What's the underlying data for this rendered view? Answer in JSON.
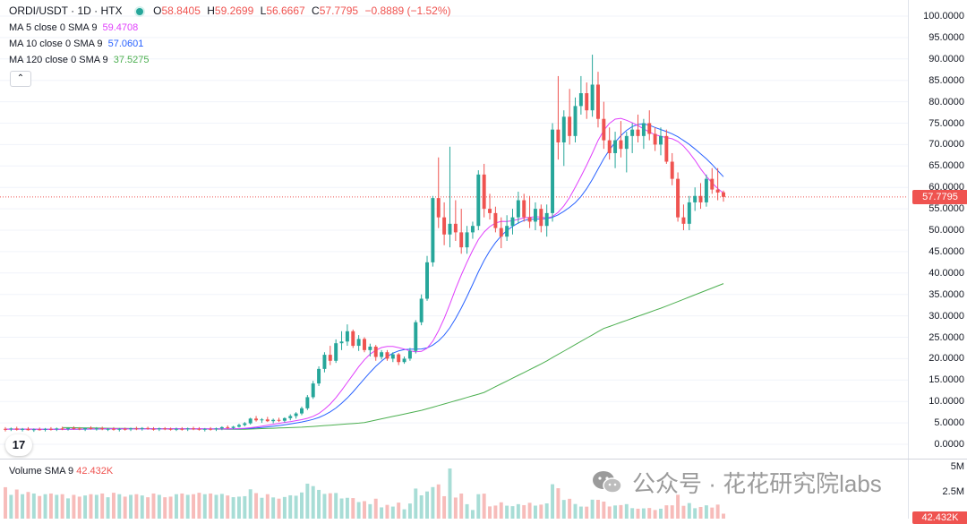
{
  "header": {
    "symbol": "ORDI/USDT · 1D · HTX",
    "ohlc": [
      {
        "k": "O",
        "v": "58.8405"
      },
      {
        "k": "H",
        "v": "59.2699"
      },
      {
        "k": "L",
        "v": "56.6667"
      },
      {
        "k": "C",
        "v": "57.7795"
      }
    ],
    "change": "−0.8889 (−1.52%)"
  },
  "indicators": [
    {
      "label": "MA 5 close 0 SMA 9",
      "value": "59.4708",
      "color": "#e040fb"
    },
    {
      "label": "MA 10 close 0 SMA 9",
      "value": "57.0601",
      "color": "#2962ff"
    },
    {
      "label": "MA 120 close 0 SMA 9",
      "value": "37.5275",
      "color": "#4caf50"
    }
  ],
  "collapse_icon": "chevron-up-icon",
  "collapse_glyph": "⌃",
  "logo_text": "17",
  "price_axis": {
    "labels": [
      "100.0000",
      "95.0000",
      "90.0000",
      "85.0000",
      "80.0000",
      "75.0000",
      "70.0000",
      "65.0000",
      "60.0000",
      "55.0000",
      "50.0000",
      "45.0000",
      "40.0000",
      "35.0000",
      "30.0000",
      "25.0000",
      "20.0000",
      "15.0000",
      "10.0000",
      "5.0000",
      "0.0000"
    ],
    "last_price": "57.7795",
    "last_price_color": "#ef5350"
  },
  "volume": {
    "legend_label": "Volume SMA 9",
    "legend_value": "42.432K",
    "axis_labels": [
      "5M",
      "2.5M"
    ],
    "last_tag": "42.432K"
  },
  "watermark": {
    "text": "公众号 · 花花研究院labs"
  },
  "colors": {
    "up": "#26a69a",
    "down": "#ef5350",
    "ma5": "#e040fb",
    "ma10": "#2962ff",
    "ma120": "#4caf50",
    "grid": "#f0f3fa"
  },
  "chart_data": {
    "type": "candlestick",
    "ylim": [
      0,
      100
    ],
    "candles": [
      [
        3.6,
        4.0,
        3.0,
        3.5
      ],
      [
        3.5,
        3.9,
        3.1,
        3.7
      ],
      [
        3.7,
        4.1,
        3.2,
        3.4
      ],
      [
        3.4,
        3.8,
        3.0,
        3.6
      ],
      [
        3.6,
        4.0,
        3.2,
        3.3
      ],
      [
        3.3,
        3.7,
        2.9,
        3.5
      ],
      [
        3.5,
        3.9,
        3.2,
        3.4
      ],
      [
        3.4,
        3.8,
        3.0,
        3.6
      ],
      [
        3.6,
        4.0,
        3.2,
        3.5
      ],
      [
        3.5,
        3.9,
        3.1,
        3.7
      ],
      [
        3.7,
        4.1,
        3.3,
        3.6
      ],
      [
        3.6,
        3.9,
        3.2,
        3.8
      ],
      [
        3.8,
        4.2,
        3.4,
        3.7
      ],
      [
        3.7,
        4.0,
        3.3,
        3.5
      ],
      [
        3.5,
        3.9,
        3.1,
        3.8
      ],
      [
        3.8,
        4.2,
        3.4,
        3.6
      ],
      [
        3.6,
        4.0,
        3.2,
        3.7
      ],
      [
        3.7,
        4.1,
        3.3,
        3.5
      ],
      [
        3.5,
        3.8,
        3.1,
        3.6
      ],
      [
        3.6,
        4.0,
        3.2,
        3.4
      ],
      [
        3.4,
        3.8,
        3.0,
        3.6
      ],
      [
        3.6,
        3.9,
        3.2,
        3.5
      ],
      [
        3.5,
        3.9,
        3.1,
        3.7
      ],
      [
        3.7,
        4.1,
        3.3,
        3.6
      ],
      [
        3.6,
        4.0,
        3.2,
        3.8
      ],
      [
        3.8,
        4.1,
        3.4,
        3.6
      ],
      [
        3.6,
        4.0,
        3.2,
        3.5
      ],
      [
        3.5,
        3.9,
        3.1,
        3.7
      ],
      [
        3.7,
        4.0,
        3.3,
        3.6
      ],
      [
        3.6,
        3.9,
        3.2,
        3.5
      ],
      [
        3.5,
        3.9,
        3.1,
        3.6
      ],
      [
        3.6,
        4.0,
        3.2,
        3.5
      ],
      [
        3.5,
        3.9,
        3.1,
        3.7
      ],
      [
        3.7,
        4.1,
        3.3,
        3.6
      ],
      [
        3.6,
        4.0,
        3.2,
        3.4
      ],
      [
        3.4,
        3.8,
        3.0,
        3.6
      ],
      [
        3.6,
        4.0,
        3.2,
        3.5
      ],
      [
        3.5,
        3.9,
        3.1,
        3.7
      ],
      [
        3.7,
        4.2,
        3.3,
        4.0
      ],
      [
        4.0,
        4.4,
        3.6,
        3.8
      ],
      [
        3.8,
        4.3,
        3.5,
        4.1
      ],
      [
        4.1,
        4.8,
        3.9,
        4.5
      ],
      [
        4.5,
        5.2,
        4.2,
        4.9
      ],
      [
        4.9,
        6.2,
        4.6,
        6.0
      ],
      [
        6.0,
        6.6,
        5.3,
        5.6
      ],
      [
        5.6,
        6.1,
        5.0,
        5.8
      ],
      [
        5.8,
        6.4,
        5.2,
        5.4
      ],
      [
        5.4,
        6.0,
        4.9,
        5.7
      ],
      [
        5.7,
        6.2,
        5.2,
        5.5
      ],
      [
        5.5,
        6.3,
        5.1,
        6.1
      ],
      [
        6.1,
        7.0,
        5.6,
        6.6
      ],
      [
        6.6,
        7.5,
        6.0,
        7.2
      ],
      [
        7.2,
        8.8,
        6.8,
        8.4
      ],
      [
        8.4,
        11.5,
        8.0,
        11.0
      ],
      [
        11.0,
        14.8,
        10.6,
        14.2
      ],
      [
        14.2,
        18.2,
        13.6,
        17.6
      ],
      [
        17.6,
        21.5,
        16.8,
        20.9
      ],
      [
        20.9,
        23.0,
        18.5,
        19.5
      ],
      [
        19.5,
        24.5,
        19.0,
        23.6
      ],
      [
        23.6,
        26.4,
        22.0,
        24.0
      ],
      [
        24.0,
        28.0,
        23.0,
        26.4
      ],
      [
        26.4,
        26.8,
        22.5,
        23.0
      ],
      [
        23.0,
        25.5,
        21.8,
        24.6
      ],
      [
        24.6,
        25.0,
        21.5,
        22.0
      ],
      [
        22.0,
        23.5,
        20.5,
        22.8
      ],
      [
        22.8,
        23.2,
        19.5,
        20.4
      ],
      [
        20.4,
        22.0,
        19.8,
        21.5
      ],
      [
        21.5,
        22.0,
        19.5,
        20.0
      ],
      [
        20.0,
        21.5,
        19.2,
        21.0
      ],
      [
        21.0,
        21.3,
        18.5,
        19.2
      ],
      [
        19.2,
        20.5,
        18.8,
        20.0
      ],
      [
        20.0,
        22.5,
        19.5,
        21.8
      ],
      [
        21.8,
        29.0,
        21.2,
        28.5
      ],
      [
        28.5,
        35.0,
        27.8,
        34.0
      ],
      [
        34.0,
        44.0,
        33.5,
        42.5
      ],
      [
        42.5,
        58.0,
        41.5,
        57.5
      ],
      [
        57.5,
        67.0,
        50.5,
        53.0
      ],
      [
        53.0,
        56.5,
        46.5,
        49.0
      ],
      [
        49.0,
        69.5,
        46.0,
        51.5
      ],
      [
        51.5,
        57.0,
        47.5,
        49.5
      ],
      [
        49.5,
        55.0,
        44.5,
        46.0
      ],
      [
        46.0,
        51.0,
        44.5,
        49.5
      ],
      [
        49.5,
        52.0,
        48.0,
        51.0
      ],
      [
        51.0,
        64.0,
        50.0,
        63.0
      ],
      [
        63.0,
        65.5,
        53.0,
        55.0
      ],
      [
        55.0,
        58.5,
        52.5,
        54.0
      ],
      [
        54.0,
        55.5,
        49.5,
        50.5
      ],
      [
        50.5,
        53.0,
        45.8,
        48.5
      ],
      [
        48.5,
        53.5,
        47.5,
        51.0
      ],
      [
        51.0,
        55.0,
        49.0,
        53.0
      ],
      [
        53.0,
        59.0,
        51.5,
        57.0
      ],
      [
        57.0,
        58.5,
        52.0,
        53.0
      ],
      [
        53.0,
        58.0,
        50.5,
        52.0
      ],
      [
        52.0,
        56.5,
        50.0,
        55.0
      ],
      [
        55.0,
        56.0,
        49.5,
        51.0
      ],
      [
        51.0,
        56.0,
        48.5,
        54.0
      ],
      [
        54.0,
        75.0,
        52.0,
        73.5
      ],
      [
        73.5,
        86.0,
        66.5,
        70.5
      ],
      [
        70.5,
        78.0,
        65.0,
        76.5
      ],
      [
        76.5,
        83.0,
        70.0,
        72.0
      ],
      [
        72.0,
        81.0,
        70.5,
        79.0
      ],
      [
        79.0,
        86.0,
        77.0,
        82.0
      ],
      [
        82.0,
        84.5,
        76.0,
        78.0
      ],
      [
        78.0,
        91.0,
        76.5,
        84.0
      ],
      [
        84.0,
        87.0,
        74.0,
        76.0
      ],
      [
        76.0,
        80.0,
        69.0,
        71.0
      ],
      [
        71.0,
        74.0,
        66.5,
        68.0
      ],
      [
        68.0,
        73.0,
        64.5,
        71.0
      ],
      [
        71.0,
        75.5,
        67.0,
        69.0
      ],
      [
        69.0,
        73.0,
        63.5,
        72.0
      ],
      [
        72.0,
        75.0,
        68.0,
        73.5
      ],
      [
        73.5,
        77.0,
        70.5,
        72.0
      ],
      [
        72.0,
        76.0,
        69.0,
        75.0
      ],
      [
        75.0,
        78.0,
        71.0,
        72.5
      ],
      [
        72.5,
        74.0,
        68.5,
        70.0
      ],
      [
        70.0,
        74.0,
        67.5,
        72.0
      ],
      [
        72.0,
        73.5,
        65.5,
        66.0
      ],
      [
        66.0,
        68.0,
        60.5,
        62.0
      ],
      [
        62.0,
        63.5,
        52.0,
        53.0
      ],
      [
        53.0,
        56.0,
        50.0,
        51.5
      ],
      [
        51.5,
        58.0,
        50.0,
        56.5
      ],
      [
        56.5,
        60.0,
        54.5,
        58.0
      ],
      [
        58.0,
        61.0,
        55.0,
        56.5
      ],
      [
        56.5,
        63.0,
        55.5,
        62.0
      ],
      [
        62.0,
        64.5,
        58.5,
        59.5
      ],
      [
        59.5,
        64.5,
        57.0,
        58.8
      ],
      [
        58.8405,
        59.2699,
        56.6667,
        57.7795
      ]
    ],
    "ma120_start": [
      3.9,
      3.7,
      3.6,
      3.5,
      4.0,
      5.0,
      8.0,
      12.0,
      19.0,
      27.0,
      32.0,
      37.53
    ]
  }
}
